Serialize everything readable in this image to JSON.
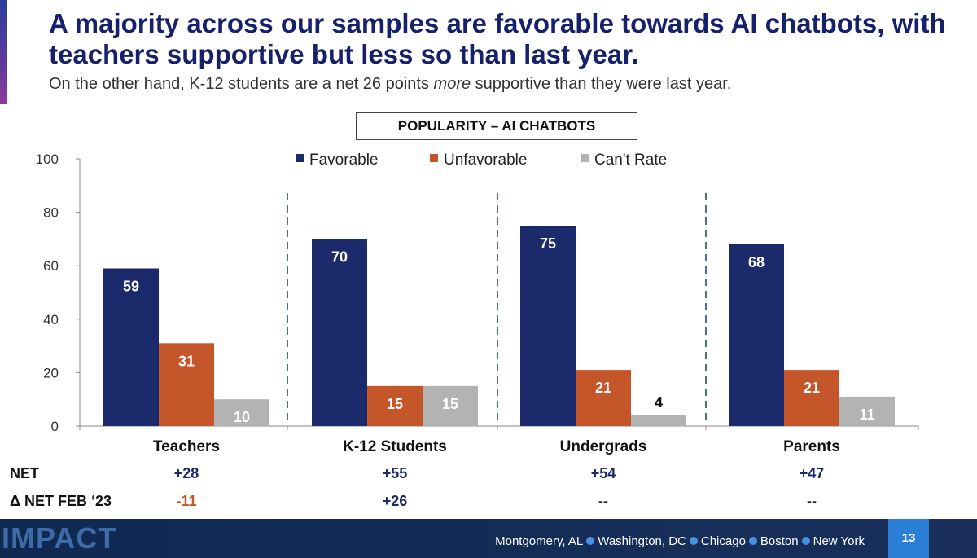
{
  "header": {
    "title": "A majority across our samples are favorable towards AI chatbots, with teachers supportive but less so than last year.",
    "subtitle_before": "On the other hand, K-12 students are a net 26 points ",
    "subtitle_emphasis": "more",
    "subtitle_after": " supportive than they were last year."
  },
  "chart_data": {
    "type": "bar",
    "title": "POPULARITY – AI CHATBOTS",
    "categories": [
      "Teachers",
      "K-12 Students",
      "Undergrads",
      "Parents"
    ],
    "series": [
      {
        "name": "Favorable",
        "values": [
          59,
          70,
          75,
          68
        ],
        "color": "#1b2a6b"
      },
      {
        "name": "Unfavorable",
        "values": [
          31,
          15,
          21,
          21
        ],
        "color": "#c4562a"
      },
      {
        "name": "Can't Rate",
        "values": [
          10,
          15,
          4,
          11
        ],
        "color": "#b3b3b3"
      }
    ],
    "ylim": [
      0,
      100
    ],
    "yticks": [
      0,
      20,
      40,
      60,
      80,
      100
    ],
    "legend_position": "top-center",
    "grid": false
  },
  "net_rows": [
    {
      "label": "NET",
      "values": [
        "+28",
        "+55",
        "+54",
        "+47"
      ],
      "colors": [
        "#1b2a6b",
        "#1b2a6b",
        "#1b2a6b",
        "#1b2a6b"
      ]
    },
    {
      "label": "Δ NET FEB ‘23",
      "values": [
        "-11",
        "+26",
        "--",
        "--"
      ],
      "colors": [
        "#c4562a",
        "#1b2a6b",
        "#222222",
        "#222222"
      ]
    }
  ],
  "footer": {
    "logo": "IMPACT",
    "cities": [
      "Montgomery, AL",
      "Washington, DC",
      "Chicago",
      "Boston",
      "New York"
    ],
    "page_number": "13"
  }
}
